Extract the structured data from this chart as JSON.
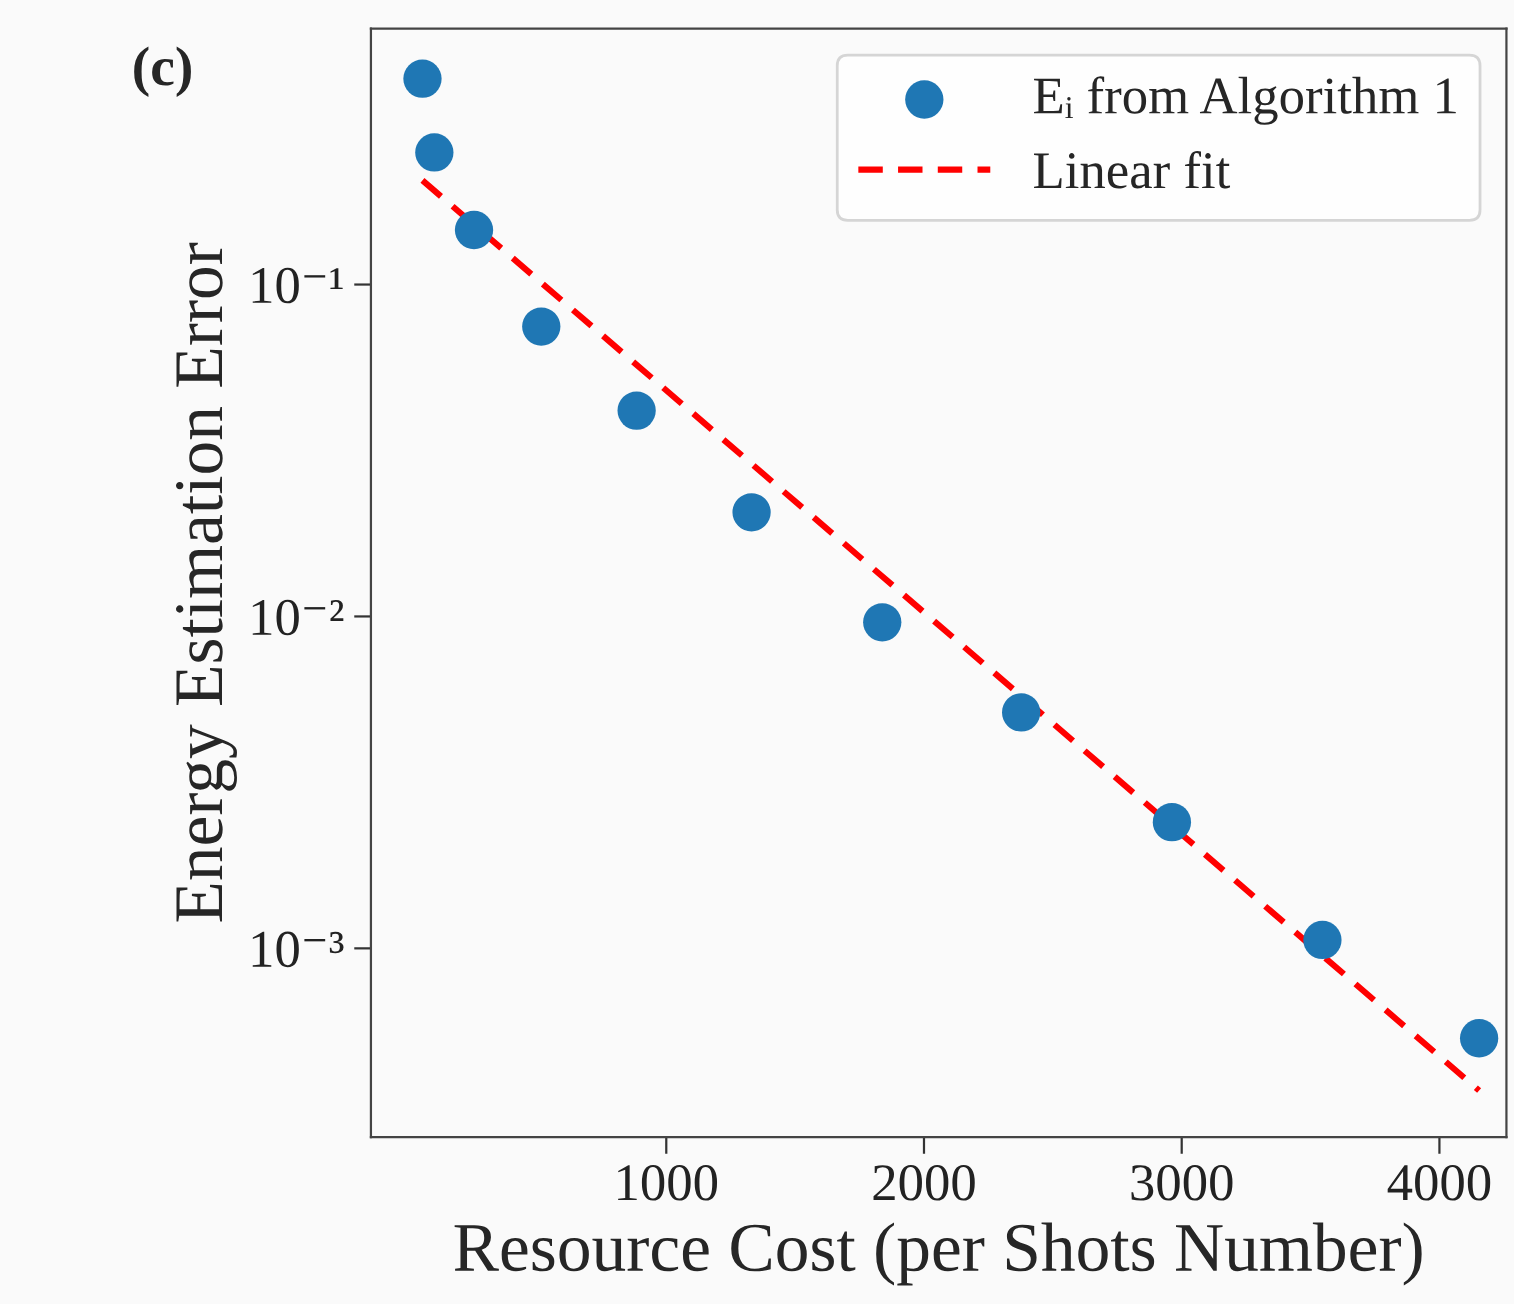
{
  "chart_data": {
    "type": "scatter",
    "xlabel": "Resource Cost (per Shots Number)",
    "ylabel": "Energy Estimation Error",
    "annotations": [
      "(c)"
    ],
    "log": "y",
    "grid": false,
    "legend": "top right",
    "marker": "circle",
    "xlim": [
      -146,
      4260
    ],
    "ylim": [
      0.00027,
      0.59
    ],
    "xticks": [
      1000,
      2000,
      3000,
      4000
    ],
    "yticks": [
      {
        "value": 0.1,
        "label": "10⁻¹"
      },
      {
        "value": 0.01,
        "label": "10⁻²"
      },
      {
        "value": 0.001,
        "label": "10⁻³"
      }
    ],
    "series": [
      {
        "name": "Eᵢ from Algorithm 1",
        "color": "#1f77b4",
        "x": [
          54,
          100,
          254,
          515,
          885,
          1331,
          1838,
          2377,
          2962,
          3546,
          4154
        ],
        "values": [
          0.417,
          0.25,
          0.146,
          0.0747,
          0.0417,
          0.0206,
          0.0096,
          0.00514,
          0.0024,
          0.00106,
          0.000536
        ]
      },
      {
        "name": "Linear fit",
        "type": "line",
        "color": "#ff0000",
        "line_style": "dashed",
        "marker": "none",
        "x": [
          54,
          4154
        ],
        "values": [
          0.206,
          0.000373
        ]
      }
    ]
  }
}
